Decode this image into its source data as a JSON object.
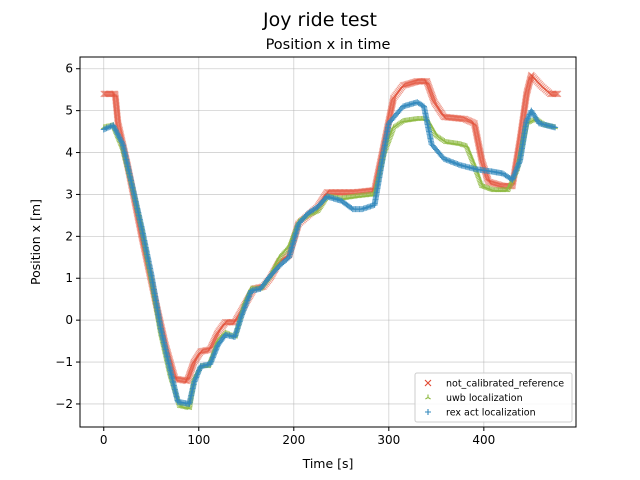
{
  "chart_data": {
    "type": "scatter",
    "suptitle": "Joy ride test",
    "title": "Position x in time",
    "xlabel": "Time [s]",
    "ylabel": "Position x [m]",
    "xlim": [
      -25,
      497
    ],
    "ylim": [
      -2.55,
      6.28
    ],
    "xticks": [
      0,
      100,
      200,
      300,
      400
    ],
    "yticks": [
      -2,
      -1,
      0,
      1,
      2,
      3,
      4,
      5,
      6
    ],
    "grid": true,
    "legend_placement": "lower-right",
    "series": [
      {
        "name": "not_calibrated_reference",
        "marker": "x",
        "color": "#e24a33",
        "points": [
          [
            0,
            5.4
          ],
          [
            12,
            5.4
          ],
          [
            15,
            4.7
          ],
          [
            25,
            3.7
          ],
          [
            40,
            2.0
          ],
          [
            55,
            0.4
          ],
          [
            65,
            -0.6
          ],
          [
            75,
            -1.4
          ],
          [
            88,
            -1.45
          ],
          [
            95,
            -1.0
          ],
          [
            102,
            -0.75
          ],
          [
            112,
            -0.7
          ],
          [
            120,
            -0.3
          ],
          [
            128,
            -0.05
          ],
          [
            138,
            -0.05
          ],
          [
            148,
            0.35
          ],
          [
            158,
            0.75
          ],
          [
            168,
            0.8
          ],
          [
            175,
            1.0
          ],
          [
            185,
            1.4
          ],
          [
            195,
            1.55
          ],
          [
            205,
            2.3
          ],
          [
            215,
            2.5
          ],
          [
            225,
            2.7
          ],
          [
            235,
            3.05
          ],
          [
            250,
            3.05
          ],
          [
            265,
            3.05
          ],
          [
            285,
            3.1
          ],
          [
            295,
            4.2
          ],
          [
            305,
            5.3
          ],
          [
            315,
            5.6
          ],
          [
            330,
            5.7
          ],
          [
            340,
            5.7
          ],
          [
            348,
            5.2
          ],
          [
            358,
            4.85
          ],
          [
            380,
            4.8
          ],
          [
            390,
            4.7
          ],
          [
            398,
            3.8
          ],
          [
            405,
            3.3
          ],
          [
            420,
            3.2
          ],
          [
            430,
            3.2
          ],
          [
            438,
            4.3
          ],
          [
            445,
            5.4
          ],
          [
            450,
            5.85
          ],
          [
            460,
            5.6
          ],
          [
            470,
            5.4
          ],
          [
            478,
            5.4
          ]
        ]
      },
      {
        "name": "uwb localization",
        "marker": "tri_up",
        "color": "#8eba42",
        "points": [
          [
            0,
            4.6
          ],
          [
            10,
            4.65
          ],
          [
            20,
            4.1
          ],
          [
            30,
            3.2
          ],
          [
            40,
            2.2
          ],
          [
            50,
            1.0
          ],
          [
            60,
            -0.3
          ],
          [
            70,
            -1.3
          ],
          [
            80,
            -2.05
          ],
          [
            90,
            -2.1
          ],
          [
            95,
            -1.4
          ],
          [
            102,
            -1.1
          ],
          [
            110,
            -1.1
          ],
          [
            120,
            -0.5
          ],
          [
            128,
            -0.3
          ],
          [
            138,
            -0.4
          ],
          [
            148,
            0.4
          ],
          [
            155,
            0.75
          ],
          [
            165,
            0.75
          ],
          [
            175,
            1.05
          ],
          [
            185,
            1.5
          ],
          [
            195,
            1.75
          ],
          [
            205,
            2.35
          ],
          [
            215,
            2.5
          ],
          [
            225,
            2.6
          ],
          [
            235,
            2.95
          ],
          [
            250,
            2.9
          ],
          [
            265,
            2.95
          ],
          [
            285,
            3.0
          ],
          [
            295,
            4.0
          ],
          [
            305,
            4.6
          ],
          [
            315,
            4.75
          ],
          [
            330,
            4.8
          ],
          [
            340,
            4.8
          ],
          [
            350,
            4.4
          ],
          [
            360,
            4.25
          ],
          [
            375,
            4.2
          ],
          [
            382,
            4.15
          ],
          [
            390,
            3.7
          ],
          [
            398,
            3.2
          ],
          [
            410,
            3.1
          ],
          [
            425,
            3.1
          ],
          [
            435,
            3.6
          ],
          [
            445,
            4.7
          ],
          [
            455,
            4.8
          ],
          [
            465,
            4.65
          ],
          [
            475,
            4.6
          ]
        ]
      },
      {
        "name": "rex act localization",
        "marker": "plus",
        "color": "#348abd",
        "points": [
          [
            0,
            4.55
          ],
          [
            10,
            4.65
          ],
          [
            20,
            4.2
          ],
          [
            30,
            3.2
          ],
          [
            40,
            2.2
          ],
          [
            50,
            1.1
          ],
          [
            60,
            -0.2
          ],
          [
            70,
            -1.2
          ],
          [
            78,
            -1.95
          ],
          [
            90,
            -2.0
          ],
          [
            95,
            -1.5
          ],
          [
            102,
            -1.1
          ],
          [
            112,
            -1.05
          ],
          [
            120,
            -0.6
          ],
          [
            128,
            -0.35
          ],
          [
            138,
            -0.4
          ],
          [
            145,
            0.1
          ],
          [
            155,
            0.7
          ],
          [
            165,
            0.75
          ],
          [
            175,
            1.05
          ],
          [
            185,
            1.3
          ],
          [
            195,
            1.5
          ],
          [
            205,
            2.3
          ],
          [
            215,
            2.55
          ],
          [
            225,
            2.7
          ],
          [
            235,
            2.95
          ],
          [
            250,
            2.85
          ],
          [
            262,
            2.65
          ],
          [
            272,
            2.65
          ],
          [
            285,
            2.75
          ],
          [
            293,
            3.8
          ],
          [
            300,
            4.7
          ],
          [
            315,
            5.1
          ],
          [
            330,
            5.2
          ],
          [
            337,
            5.1
          ],
          [
            345,
            4.2
          ],
          [
            358,
            3.85
          ],
          [
            375,
            3.7
          ],
          [
            392,
            3.6
          ],
          [
            408,
            3.55
          ],
          [
            420,
            3.5
          ],
          [
            430,
            3.35
          ],
          [
            438,
            3.8
          ],
          [
            445,
            4.75
          ],
          [
            450,
            5.0
          ],
          [
            458,
            4.7
          ],
          [
            466,
            4.65
          ],
          [
            475,
            4.6
          ]
        ]
      }
    ]
  }
}
